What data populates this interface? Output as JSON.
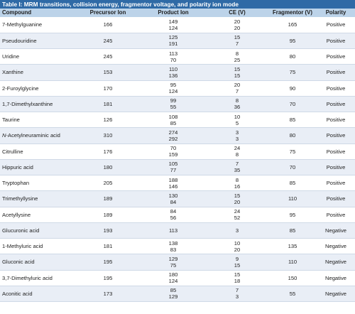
{
  "title": "Table I: MRM transitions, collision energy, fragmentor voltage, and polarity ion mode",
  "headers": [
    "Compound",
    "Precursor Ion",
    "Product Ion",
    "CE (V)",
    "Fragmentor (V)",
    "Polarity"
  ],
  "rows": [
    {
      "compound": "7-Methylguanine",
      "precursor": "166",
      "product": [
        "149",
        "124"
      ],
      "ce": [
        "20",
        "20"
      ],
      "fragmentor": "165",
      "polarity": "Positive"
    },
    {
      "compound": "Pseudouridine",
      "precursor": "245",
      "product": [
        "125",
        "191"
      ],
      "ce": [
        "15",
        "7"
      ],
      "fragmentor": "95",
      "polarity": "Positive"
    },
    {
      "compound": "Uridine",
      "precursor": "245",
      "product": [
        "113",
        "70"
      ],
      "ce": [
        "8",
        "25"
      ],
      "fragmentor": "80",
      "polarity": "Positive"
    },
    {
      "compound": "Xanthine",
      "precursor": "153",
      "product": [
        "110",
        "136"
      ],
      "ce": [
        "15",
        "15"
      ],
      "fragmentor": "75",
      "polarity": "Positive"
    },
    {
      "compound": "2-Furoylglycine",
      "precursor": "170",
      "product": [
        "95",
        "124"
      ],
      "ce": [
        "20",
        "7"
      ],
      "fragmentor": "90",
      "polarity": "Positive"
    },
    {
      "compound": "1,7-Dimethylxanthine",
      "precursor": "181",
      "product": [
        "99",
        "55"
      ],
      "ce": [
        "8",
        "36"
      ],
      "fragmentor": "70",
      "polarity": "Positive"
    },
    {
      "compound": "Taurine",
      "precursor": "126",
      "product": [
        "108",
        "85"
      ],
      "ce": [
        "10",
        "5"
      ],
      "fragmentor": "85",
      "polarity": "Positive"
    },
    {
      "compound_prefix": "N",
      "compound": "-Acetylneuraminic acid",
      "precursor": "310",
      "product": [
        "274",
        "292"
      ],
      "ce": [
        "3",
        "3"
      ],
      "fragmentor": "80",
      "polarity": "Positive"
    },
    {
      "compound": "Citrulline",
      "precursor": "176",
      "product": [
        "70",
        "159"
      ],
      "ce": [
        "24",
        "8"
      ],
      "fragmentor": "75",
      "polarity": "Positive"
    },
    {
      "compound": "Hippuric acid",
      "precursor": "180",
      "product": [
        "105",
        "77"
      ],
      "ce": [
        "7",
        "35"
      ],
      "fragmentor": "70",
      "polarity": "Positive"
    },
    {
      "compound": "Tryptophan",
      "precursor": "205",
      "product": [
        "188",
        "146"
      ],
      "ce": [
        "8",
        "16"
      ],
      "fragmentor": "85",
      "polarity": "Positive"
    },
    {
      "compound": "Trimethyllysine",
      "precursor": "189",
      "product": [
        "130",
        "84"
      ],
      "ce": [
        "15",
        "20"
      ],
      "fragmentor": "110",
      "polarity": "Positive"
    },
    {
      "compound": "Acetyllysine",
      "precursor": "189",
      "product": [
        "84",
        "56"
      ],
      "ce": [
        "24",
        "52"
      ],
      "fragmentor": "95",
      "polarity": "Positive"
    },
    {
      "compound": "Glucuronic acid",
      "precursor": "193",
      "product": [
        "113"
      ],
      "ce": [
        "3"
      ],
      "fragmentor": "85",
      "polarity": "Negative"
    },
    {
      "compound": "1-Methyluric acid",
      "precursor": "181",
      "product": [
        "138",
        "83"
      ],
      "ce": [
        "10",
        "20"
      ],
      "fragmentor": "135",
      "polarity": "Negative"
    },
    {
      "compound": "Gluconic acid",
      "precursor": "195",
      "product": [
        "129",
        "75"
      ],
      "ce": [
        "9",
        "15"
      ],
      "fragmentor": "110",
      "polarity": "Negative"
    },
    {
      "compound": "3,7-Dimethyluric acid",
      "precursor": "195",
      "product": [
        "180",
        "124"
      ],
      "ce": [
        "15",
        "18"
      ],
      "fragmentor": "150",
      "polarity": "Negative"
    },
    {
      "compound": "Aconitic acid",
      "precursor": "173",
      "product": [
        "85",
        "129"
      ],
      "ce": [
        "7",
        "3"
      ],
      "fragmentor": "55",
      "polarity": "Negative"
    }
  ]
}
